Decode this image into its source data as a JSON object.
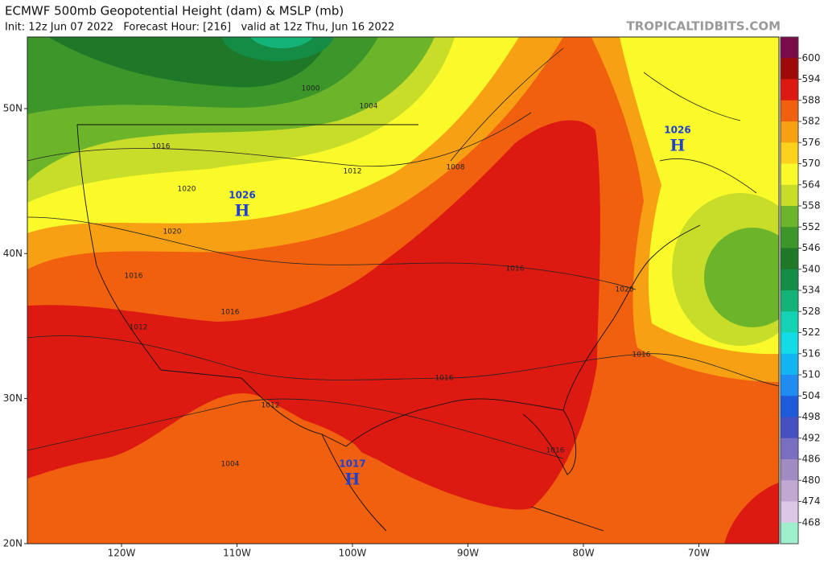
{
  "header": {
    "title": "ECMWF 500mb Geopotential Height (dam) & MSLP (mb)",
    "subtitle": "Init: 12z Jun 07 2022   Forecast Hour: [216]   valid at 12z Thu, Jun 16 2022",
    "site": "TROPICALTIDBITS.COM"
  },
  "colorbar": {
    "labels": [
      "600",
      "594",
      "588",
      "582",
      "576",
      "570",
      "564",
      "558",
      "552",
      "546",
      "540",
      "534",
      "528",
      "522",
      "516",
      "510",
      "504",
      "498",
      "492",
      "486",
      "480",
      "474",
      "468"
    ],
    "colors": [
      "#7a0a48",
      "#9e0a0a",
      "#dc1a12",
      "#f0600f",
      "#f8a014",
      "#fcd21c",
      "#fafa2a",
      "#c8dc2a",
      "#6cb42a",
      "#3c962a",
      "#1e7828",
      "#148c46",
      "#14b478",
      "#14d2b4",
      "#14dce6",
      "#14b4f0",
      "#1e8cf0",
      "#1e5adc",
      "#4650c0",
      "#7a6ec0",
      "#a08cc0",
      "#c0a8d2",
      "#dcc8e6",
      "#9ef0cc"
    ]
  },
  "axes": {
    "lat": [
      "50N",
      "40N",
      "30N",
      "20N"
    ],
    "lon": [
      "120W",
      "110W",
      "100W",
      "90W",
      "80W",
      "70W"
    ]
  },
  "pressure_centers": [
    {
      "value": "1026",
      "label": "H"
    },
    {
      "value": "1026",
      "label": "H"
    },
    {
      "value": "1017",
      "label": "H"
    }
  ],
  "contour_labels": [
    "1000",
    "1004",
    "1016",
    "1012",
    "1008",
    "1020",
    "1020",
    "1016",
    "1016",
    "1012",
    "1016",
    "1020",
    "1016",
    "1016",
    "1012",
    "1004",
    "1016"
  ]
}
